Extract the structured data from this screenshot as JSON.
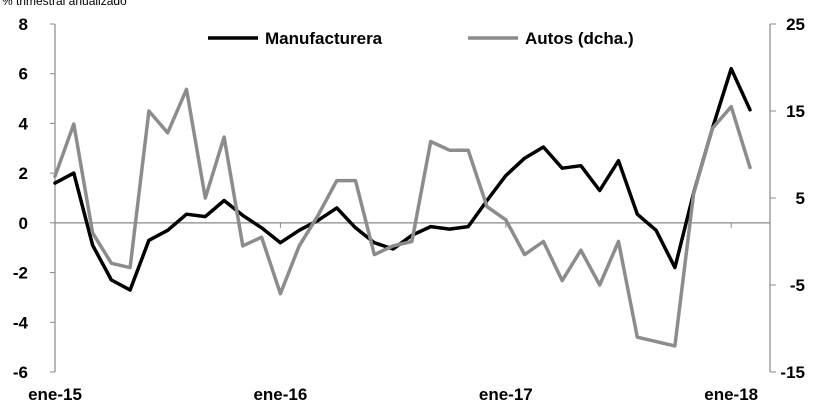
{
  "chart_data": {
    "type": "line",
    "subtitle": "% trimestral anualizado",
    "x": [
      "ene-15",
      "feb-15",
      "mar-15",
      "abr-15",
      "may-15",
      "jun-15",
      "jul-15",
      "ago-15",
      "sep-15",
      "oct-15",
      "nov-15",
      "dic-15",
      "ene-16",
      "feb-16",
      "mar-16",
      "abr-16",
      "may-16",
      "jun-16",
      "jul-16",
      "ago-16",
      "sep-16",
      "oct-16",
      "nov-16",
      "dic-16",
      "ene-17",
      "feb-17",
      "mar-17",
      "abr-17",
      "may-17",
      "jun-17",
      "jul-17",
      "ago-17",
      "sep-17",
      "oct-17",
      "nov-17",
      "dic-17",
      "ene-18",
      "feb-18"
    ],
    "x_tick_labels": [
      "ene-15",
      "ene-16",
      "ene-17",
      "ene-18"
    ],
    "y_left": {
      "range": [
        -6,
        8
      ],
      "ticks": [
        "-6",
        "-4",
        "-2",
        "0",
        "2",
        "4",
        "6",
        "8"
      ]
    },
    "y_right": {
      "range": [
        -15,
        25
      ],
      "ticks": [
        "-15",
        "-5",
        "5",
        "15",
        "25"
      ]
    },
    "series": [
      {
        "name": "Manufacturera",
        "axis": "left",
        "color": "#000000",
        "values": [
          1.6,
          2.0,
          -0.9,
          -2.3,
          -2.7,
          -0.7,
          -0.3,
          0.35,
          0.25,
          0.9,
          0.3,
          -0.2,
          -0.8,
          -0.3,
          0.1,
          0.6,
          -0.2,
          -0.8,
          -1.05,
          -0.5,
          -0.15,
          -0.25,
          -0.15,
          0.9,
          1.9,
          2.6,
          3.05,
          2.2,
          2.3,
          1.3,
          2.5,
          0.35,
          -0.3,
          -1.8,
          1.2,
          3.8,
          6.2,
          4.55
        ]
      },
      {
        "name": "Autos (dcha.)",
        "axis": "right",
        "color": "#8c8c8c",
        "values": [
          7.5,
          13.5,
          1.0,
          -2.5,
          -3.0,
          15.0,
          12.5,
          17.5,
          5.0,
          12.0,
          -0.5,
          0.5,
          -6.0,
          -0.5,
          3.0,
          7.0,
          7.0,
          -1.5,
          -0.5,
          0.0,
          11.5,
          10.5,
          10.5,
          4.0,
          2.5,
          -1.5,
          0.0,
          -4.5,
          -1.0,
          -5.0,
          0.0,
          -11.0,
          -11.5,
          -12.0,
          5.5,
          13.0,
          15.5,
          8.5
        ]
      }
    ],
    "legend_position": "top",
    "grid": false
  }
}
